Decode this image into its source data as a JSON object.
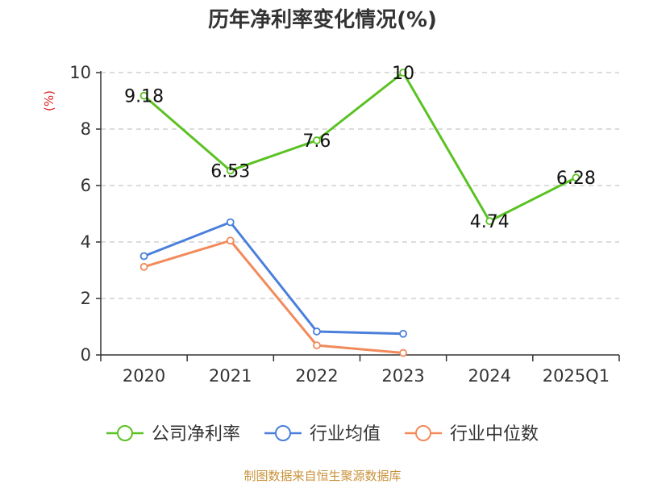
{
  "chart_data": {
    "type": "line",
    "title": "历年净利率变化情况(%)",
    "ylabel": "(%)",
    "xlabel": "",
    "categories": [
      "2020",
      "2021",
      "2022",
      "2023",
      "2024",
      "2025Q1"
    ],
    "ylim": [
      0,
      10
    ],
    "yticks": [
      0,
      2,
      4,
      6,
      8,
      10
    ],
    "grid": true,
    "legend_position": "bottom",
    "series": [
      {
        "name": "公司净利率",
        "color": "#5BC223",
        "values": [
          9.18,
          6.53,
          7.6,
          10,
          4.74,
          6.28
        ],
        "labels": [
          "9.18",
          "6.53",
          "7.6",
          "10",
          "4.74",
          "6.28"
        ]
      },
      {
        "name": "行业均值",
        "color": "#4A7FDB",
        "values": [
          3.5,
          4.7,
          0.83,
          0.75,
          null,
          null
        ]
      },
      {
        "name": "行业中位数",
        "color": "#F28A5B",
        "values": [
          3.12,
          4.05,
          0.34,
          0.07,
          null,
          null
        ]
      }
    ]
  },
  "source": {
    "text": "制图数据来自恒生聚源数据库",
    "color": "#C8923A"
  },
  "unit_color": "#E02020"
}
